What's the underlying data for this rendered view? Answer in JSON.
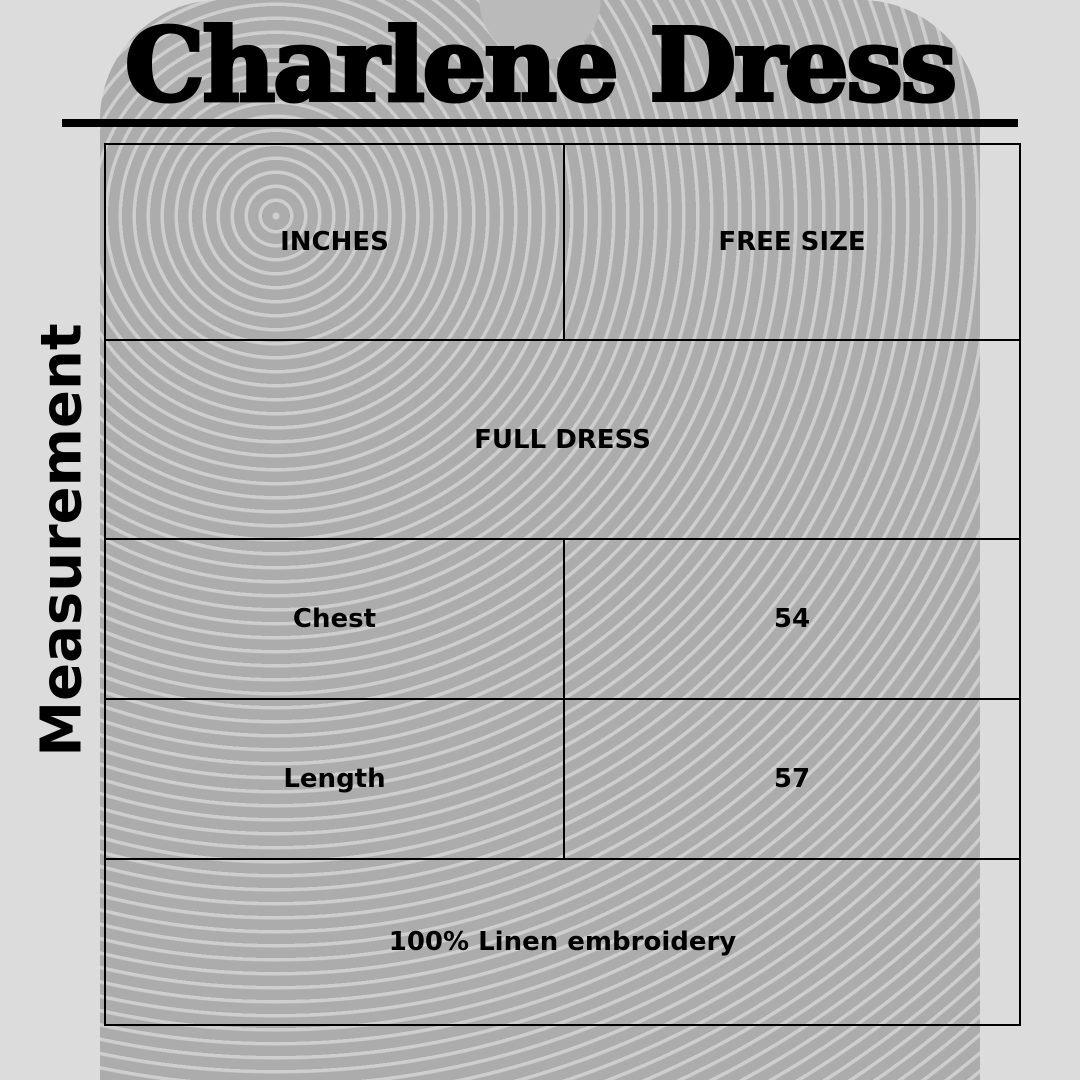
{
  "title": "Charlene Dress",
  "side_label": "Measurement",
  "table": {
    "header": [
      "INCHES",
      "FREE SIZE"
    ],
    "section": "FULL DRESS",
    "rows": [
      [
        "Chest",
        "54"
      ],
      [
        "Length",
        "57"
      ]
    ],
    "footer": "100% Linen embroidery"
  }
}
